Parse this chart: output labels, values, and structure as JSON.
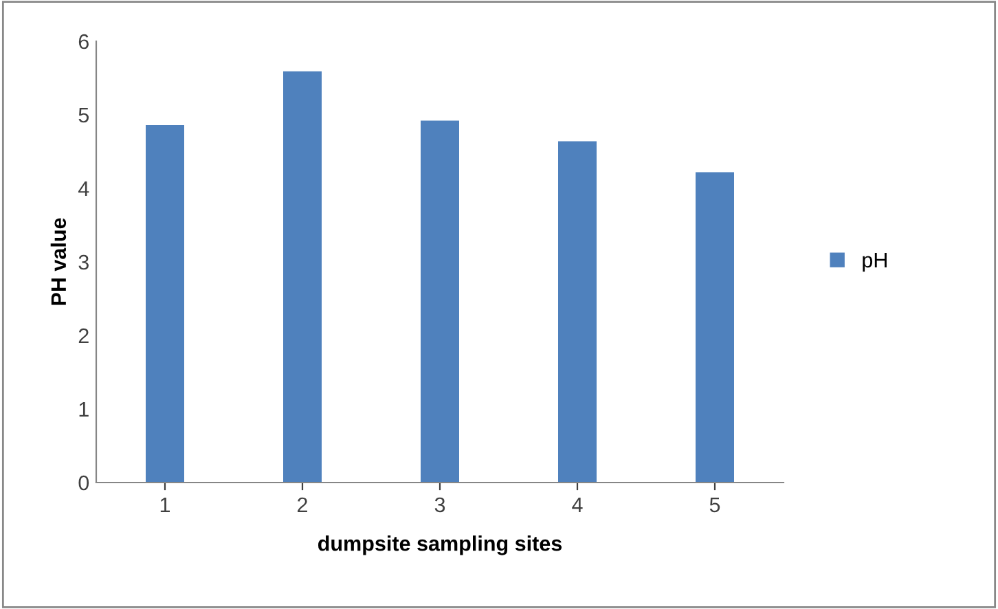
{
  "chart_data": {
    "type": "bar",
    "xlabel": "dumpsite sampling sites",
    "ylabel": "PH value",
    "categories": [
      "1",
      "2",
      "3",
      "4",
      "5"
    ],
    "series": [
      {
        "name": "pH",
        "color": "#4f81bd",
        "values": [
          4.86,
          5.59,
          4.92,
          4.64,
          4.22
        ]
      }
    ],
    "ylim": [
      0,
      6
    ],
    "yticks": [
      0,
      1,
      2,
      3,
      4,
      5,
      6
    ],
    "grid": false,
    "legend": "right"
  }
}
